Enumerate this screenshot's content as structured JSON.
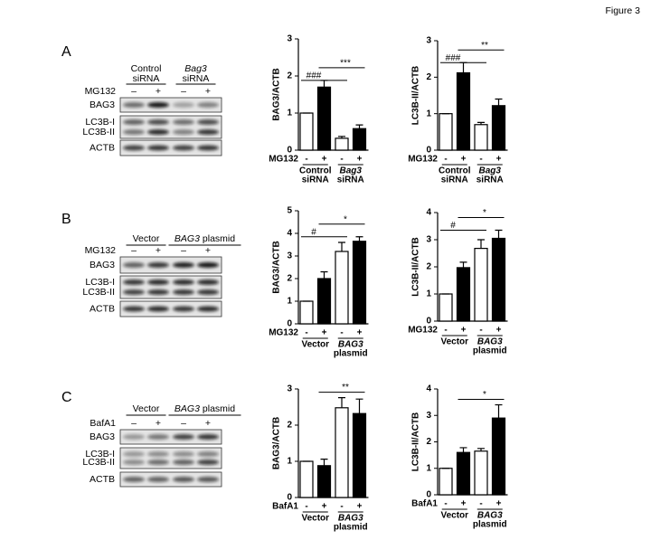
{
  "figure_label": "Figure 3",
  "blots": [
    {
      "panel": "A",
      "groups": [
        [
          "Control",
          "siRNA"
        ],
        [
          "Bag3",
          "siRNA"
        ]
      ],
      "treatment": "MG132",
      "signs": [
        "–",
        "+",
        "–",
        "+"
      ],
      "bands": [
        "BAG3",
        "LC3B-I",
        "LC3B-II",
        "ACTB"
      ]
    },
    {
      "panel": "B",
      "groups": [
        [
          "Vector"
        ],
        [
          "BAG3",
          "plasmid"
        ]
      ],
      "treatment": "MG132",
      "signs": [
        "–",
        "+",
        "–",
        "+"
      ],
      "bands": [
        "BAG3",
        "LC3B-I",
        "LC3B-II",
        "ACTB"
      ]
    },
    {
      "panel": "C",
      "groups": [
        [
          "Vector"
        ],
        [
          "BAG3",
          "plasmid"
        ]
      ],
      "treatment": "BafA1",
      "signs": [
        "–",
        "+",
        "–",
        "+"
      ],
      "bands": [
        "BAG3",
        "LC3B-I",
        "LC3B-II",
        "ACTB"
      ]
    }
  ],
  "chart_data": [
    {
      "type": "bar",
      "y_label": "BAG3/ACTB",
      "ylim": [
        0,
        3
      ],
      "yticks": [
        0,
        1,
        2,
        3
      ],
      "x_label": "MG132",
      "categories": [
        "-",
        "+",
        "-",
        "+"
      ],
      "values": [
        1,
        1.7,
        0.32,
        0.58
      ],
      "errors": [
        0,
        0.18,
        0.05,
        0.1
      ],
      "colors": [
        "#ffffff",
        "#000000",
        "#ffffff",
        "#000000"
      ],
      "groups": [
        [
          "Control",
          "siRNA"
        ],
        [
          "Bag3",
          "siRNA"
        ]
      ],
      "annotations": [
        "###",
        "***"
      ]
    },
    {
      "type": "bar",
      "y_label": "LC3B-II/ACTB",
      "ylim": [
        0,
        3
      ],
      "yticks": [
        0,
        1,
        2,
        3
      ],
      "x_label": "MG132",
      "categories": [
        "-",
        "+",
        "-",
        "+"
      ],
      "values": [
        1,
        2.12,
        0.7,
        1.22
      ],
      "errors": [
        0,
        0.28,
        0.06,
        0.18
      ],
      "colors": [
        "#ffffff",
        "#000000",
        "#ffffff",
        "#000000"
      ],
      "groups": [
        [
          "Control",
          "siRNA"
        ],
        [
          "Bag3",
          "siRNA"
        ]
      ],
      "annotations": [
        "###",
        "**"
      ]
    },
    {
      "type": "bar",
      "y_label": "BAG3/ACTB",
      "ylim": [
        0,
        5
      ],
      "yticks": [
        0,
        1,
        2,
        3,
        4,
        5
      ],
      "x_label": "MG132",
      "categories": [
        "-",
        "+",
        "-",
        "+"
      ],
      "values": [
        1,
        2.0,
        3.2,
        3.65
      ],
      "errors": [
        0,
        0.3,
        0.4,
        0.2
      ],
      "colors": [
        "#ffffff",
        "#000000",
        "#ffffff",
        "#000000"
      ],
      "groups": [
        [
          "Vector"
        ],
        [
          "BAG3",
          "plasmid"
        ]
      ],
      "annotations": [
        "#",
        "*"
      ]
    },
    {
      "type": "bar",
      "y_label": "LC3B-II/ACTB",
      "ylim": [
        0,
        4
      ],
      "yticks": [
        0,
        1,
        2,
        3,
        4
      ],
      "x_label": "MG132",
      "categories": [
        "-",
        "+",
        "-",
        "+"
      ],
      "values": [
        1,
        1.97,
        2.68,
        3.05
      ],
      "errors": [
        0,
        0.2,
        0.32,
        0.3
      ],
      "colors": [
        "#ffffff",
        "#000000",
        "#ffffff",
        "#000000"
      ],
      "groups": [
        [
          "Vector"
        ],
        [
          "BAG3",
          "plasmid"
        ]
      ],
      "annotations": [
        "#",
        "*"
      ]
    },
    {
      "type": "bar",
      "y_label": "BAG3/ACTB",
      "ylim": [
        0,
        3
      ],
      "yticks": [
        0,
        1,
        2,
        3
      ],
      "x_label": "BafA1",
      "categories": [
        "-",
        "+",
        "-",
        "+"
      ],
      "values": [
        1,
        0.88,
        2.48,
        2.32
      ],
      "errors": [
        0,
        0.18,
        0.28,
        0.4
      ],
      "colors": [
        "#ffffff",
        "#000000",
        "#ffffff",
        "#000000"
      ],
      "groups": [
        [
          "Vector"
        ],
        [
          "BAG3",
          "plasmid"
        ]
      ],
      "annotations": [
        "**"
      ]
    },
    {
      "type": "bar",
      "y_label": "LC3B-II/ACTB",
      "ylim": [
        0,
        4
      ],
      "yticks": [
        0,
        1,
        2,
        3,
        4
      ],
      "x_label": "BafA1",
      "categories": [
        "-",
        "+",
        "-",
        "+"
      ],
      "values": [
        1,
        1.6,
        1.65,
        2.9
      ],
      "errors": [
        0,
        0.18,
        0.1,
        0.5
      ],
      "colors": [
        "#ffffff",
        "#000000",
        "#ffffff",
        "#000000"
      ],
      "groups": [
        [
          "Vector"
        ],
        [
          "BAG3",
          "plasmid"
        ]
      ],
      "annotations": [
        "*"
      ]
    }
  ]
}
